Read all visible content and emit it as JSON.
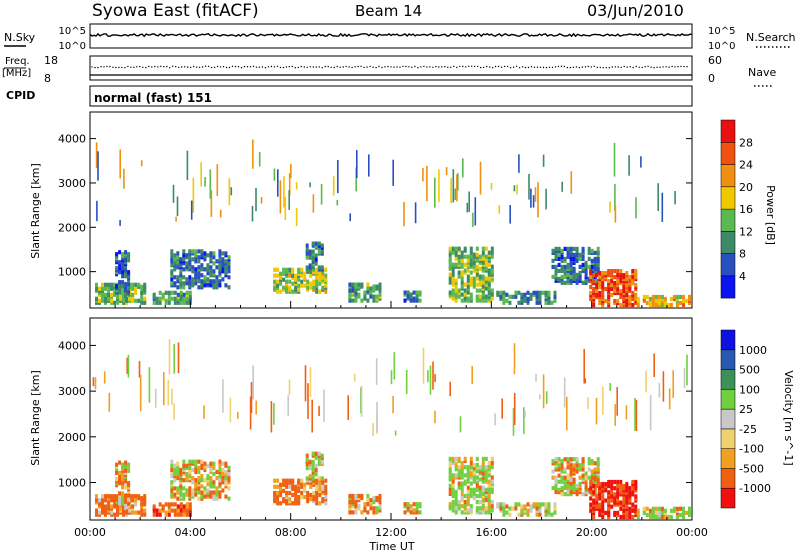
{
  "header": {
    "title": "Syowa East (fitACF)",
    "beam": "Beam 14",
    "date": "03/Jun/2010"
  },
  "noise_panel": {
    "left_label": "N.Sky",
    "left_ticks": [
      "10^5",
      "10^0"
    ],
    "right_label": "N.Search",
    "right_ticks": [
      "10^5",
      "10^0"
    ]
  },
  "freq_panel": {
    "left_label": "Freq.",
    "left_unit": "[MHz]",
    "left_ticks": [
      "18",
      "8"
    ],
    "right_label": "Nave",
    "right_ticks": [
      "60",
      "0"
    ]
  },
  "cpid": {
    "label": "CPID",
    "mode": "normal (fast) 151"
  },
  "colors": {
    "power": [
      "#0a14f0",
      "#2a50c0",
      "#3c8a68",
      "#5ab850",
      "#f0c800",
      "#f09010",
      "#f05010",
      "#e81010"
    ],
    "velocity": [
      "#f01010",
      "#f06010",
      "#f0a020",
      "#f0d070",
      "#c8c8c8",
      "#70d040",
      "#3c9058",
      "#2a58b0",
      "#1010e0"
    ]
  },
  "chart_data": [
    {
      "type": "heatmap",
      "title": "",
      "xlabel": "",
      "ylabel": "Slant Range [km]",
      "xlim": [
        "00:00",
        "00:00"
      ],
      "ylim": [
        180,
        4600
      ],
      "x_ticks": [
        "00:00",
        "04:00",
        "08:00",
        "12:00",
        "16:00",
        "20:00",
        "00:00"
      ],
      "y_ticks": [
        1000,
        2000,
        3000,
        4000
      ],
      "colorbar": {
        "label": "Power [dB]",
        "ticks": [
          4,
          8,
          12,
          16,
          20,
          24,
          28
        ],
        "range": [
          0,
          32
        ]
      },
      "echo_regions": [
        {
          "start_h": 0.2,
          "end_h": 2.2,
          "range_km": [
            250,
            700
          ],
          "value": 14
        },
        {
          "start_h": 1.0,
          "end_h": 1.6,
          "range_km": [
            400,
            1400
          ],
          "value": 8
        },
        {
          "start_h": 2.5,
          "end_h": 4.0,
          "range_km": [
            250,
            500
          ],
          "value": 12
        },
        {
          "start_h": 3.2,
          "end_h": 5.6,
          "range_km": [
            600,
            1450
          ],
          "value": 8
        },
        {
          "start_h": 7.3,
          "end_h": 9.4,
          "range_km": [
            500,
            1000
          ],
          "value": 16
        },
        {
          "start_h": 8.6,
          "end_h": 9.3,
          "range_km": [
            1000,
            1600
          ],
          "value": 8
        },
        {
          "start_h": 10.3,
          "end_h": 11.5,
          "range_km": [
            300,
            700
          ],
          "value": 12
        },
        {
          "start_h": 12.5,
          "end_h": 13.2,
          "range_km": [
            300,
            500
          ],
          "value": 8
        },
        {
          "start_h": 14.3,
          "end_h": 16.0,
          "range_km": [
            300,
            1500
          ],
          "value": 14
        },
        {
          "start_h": 16.2,
          "end_h": 18.5,
          "range_km": [
            250,
            500
          ],
          "value": 10
        },
        {
          "start_h": 18.4,
          "end_h": 20.3,
          "range_km": [
            700,
            1500
          ],
          "value": 8
        },
        {
          "start_h": 19.9,
          "end_h": 21.8,
          "range_km": [
            200,
            1000
          ],
          "value": 26
        },
        {
          "start_h": 21.8,
          "end_h": 23.9,
          "range_km": [
            200,
            400
          ],
          "value": 20
        }
      ]
    },
    {
      "type": "heatmap",
      "title": "",
      "xlabel": "Time UT",
      "ylabel": "Slant Range [km]",
      "xlim": [
        "00:00",
        "00:00"
      ],
      "ylim": [
        180,
        4600
      ],
      "x_ticks": [
        "00:00",
        "04:00",
        "08:00",
        "12:00",
        "16:00",
        "20:00",
        "00:00"
      ],
      "y_ticks": [
        1000,
        2000,
        3000,
        4000
      ],
      "colorbar": {
        "label": "Velocity [m s^-1]",
        "ticks": [
          -1000,
          -500,
          -100,
          -25,
          25,
          100,
          500,
          1000
        ]
      },
      "echo_regions": [
        {
          "start_h": 0.2,
          "end_h": 2.2,
          "range_km": [
            250,
            700
          ],
          "value": -200
        },
        {
          "start_h": 1.0,
          "end_h": 1.6,
          "range_km": [
            400,
            1400
          ],
          "value": -50
        },
        {
          "start_h": 2.5,
          "end_h": 4.0,
          "range_km": [
            250,
            500
          ],
          "value": -300
        },
        {
          "start_h": 3.2,
          "end_h": 5.6,
          "range_km": [
            600,
            1450
          ],
          "value": 0
        },
        {
          "start_h": 7.3,
          "end_h": 9.4,
          "range_km": [
            500,
            1000
          ],
          "value": -200
        },
        {
          "start_h": 8.6,
          "end_h": 9.3,
          "range_km": [
            1000,
            1600
          ],
          "value": 0
        },
        {
          "start_h": 10.3,
          "end_h": 11.5,
          "range_km": [
            300,
            700
          ],
          "value": -100
        },
        {
          "start_h": 12.5,
          "end_h": 13.2,
          "range_km": [
            300,
            500
          ],
          "value": -50
        },
        {
          "start_h": 14.3,
          "end_h": 16.0,
          "range_km": [
            300,
            1500
          ],
          "value": 150
        },
        {
          "start_h": 16.2,
          "end_h": 18.5,
          "range_km": [
            250,
            500
          ],
          "value": 100
        },
        {
          "start_h": 18.4,
          "end_h": 20.3,
          "range_km": [
            700,
            1500
          ],
          "value": 0
        },
        {
          "start_h": 19.9,
          "end_h": 21.8,
          "range_km": [
            200,
            1000
          ],
          "value": -600
        },
        {
          "start_h": 21.8,
          "end_h": 23.9,
          "range_km": [
            200,
            400
          ],
          "value": 150
        }
      ]
    }
  ]
}
